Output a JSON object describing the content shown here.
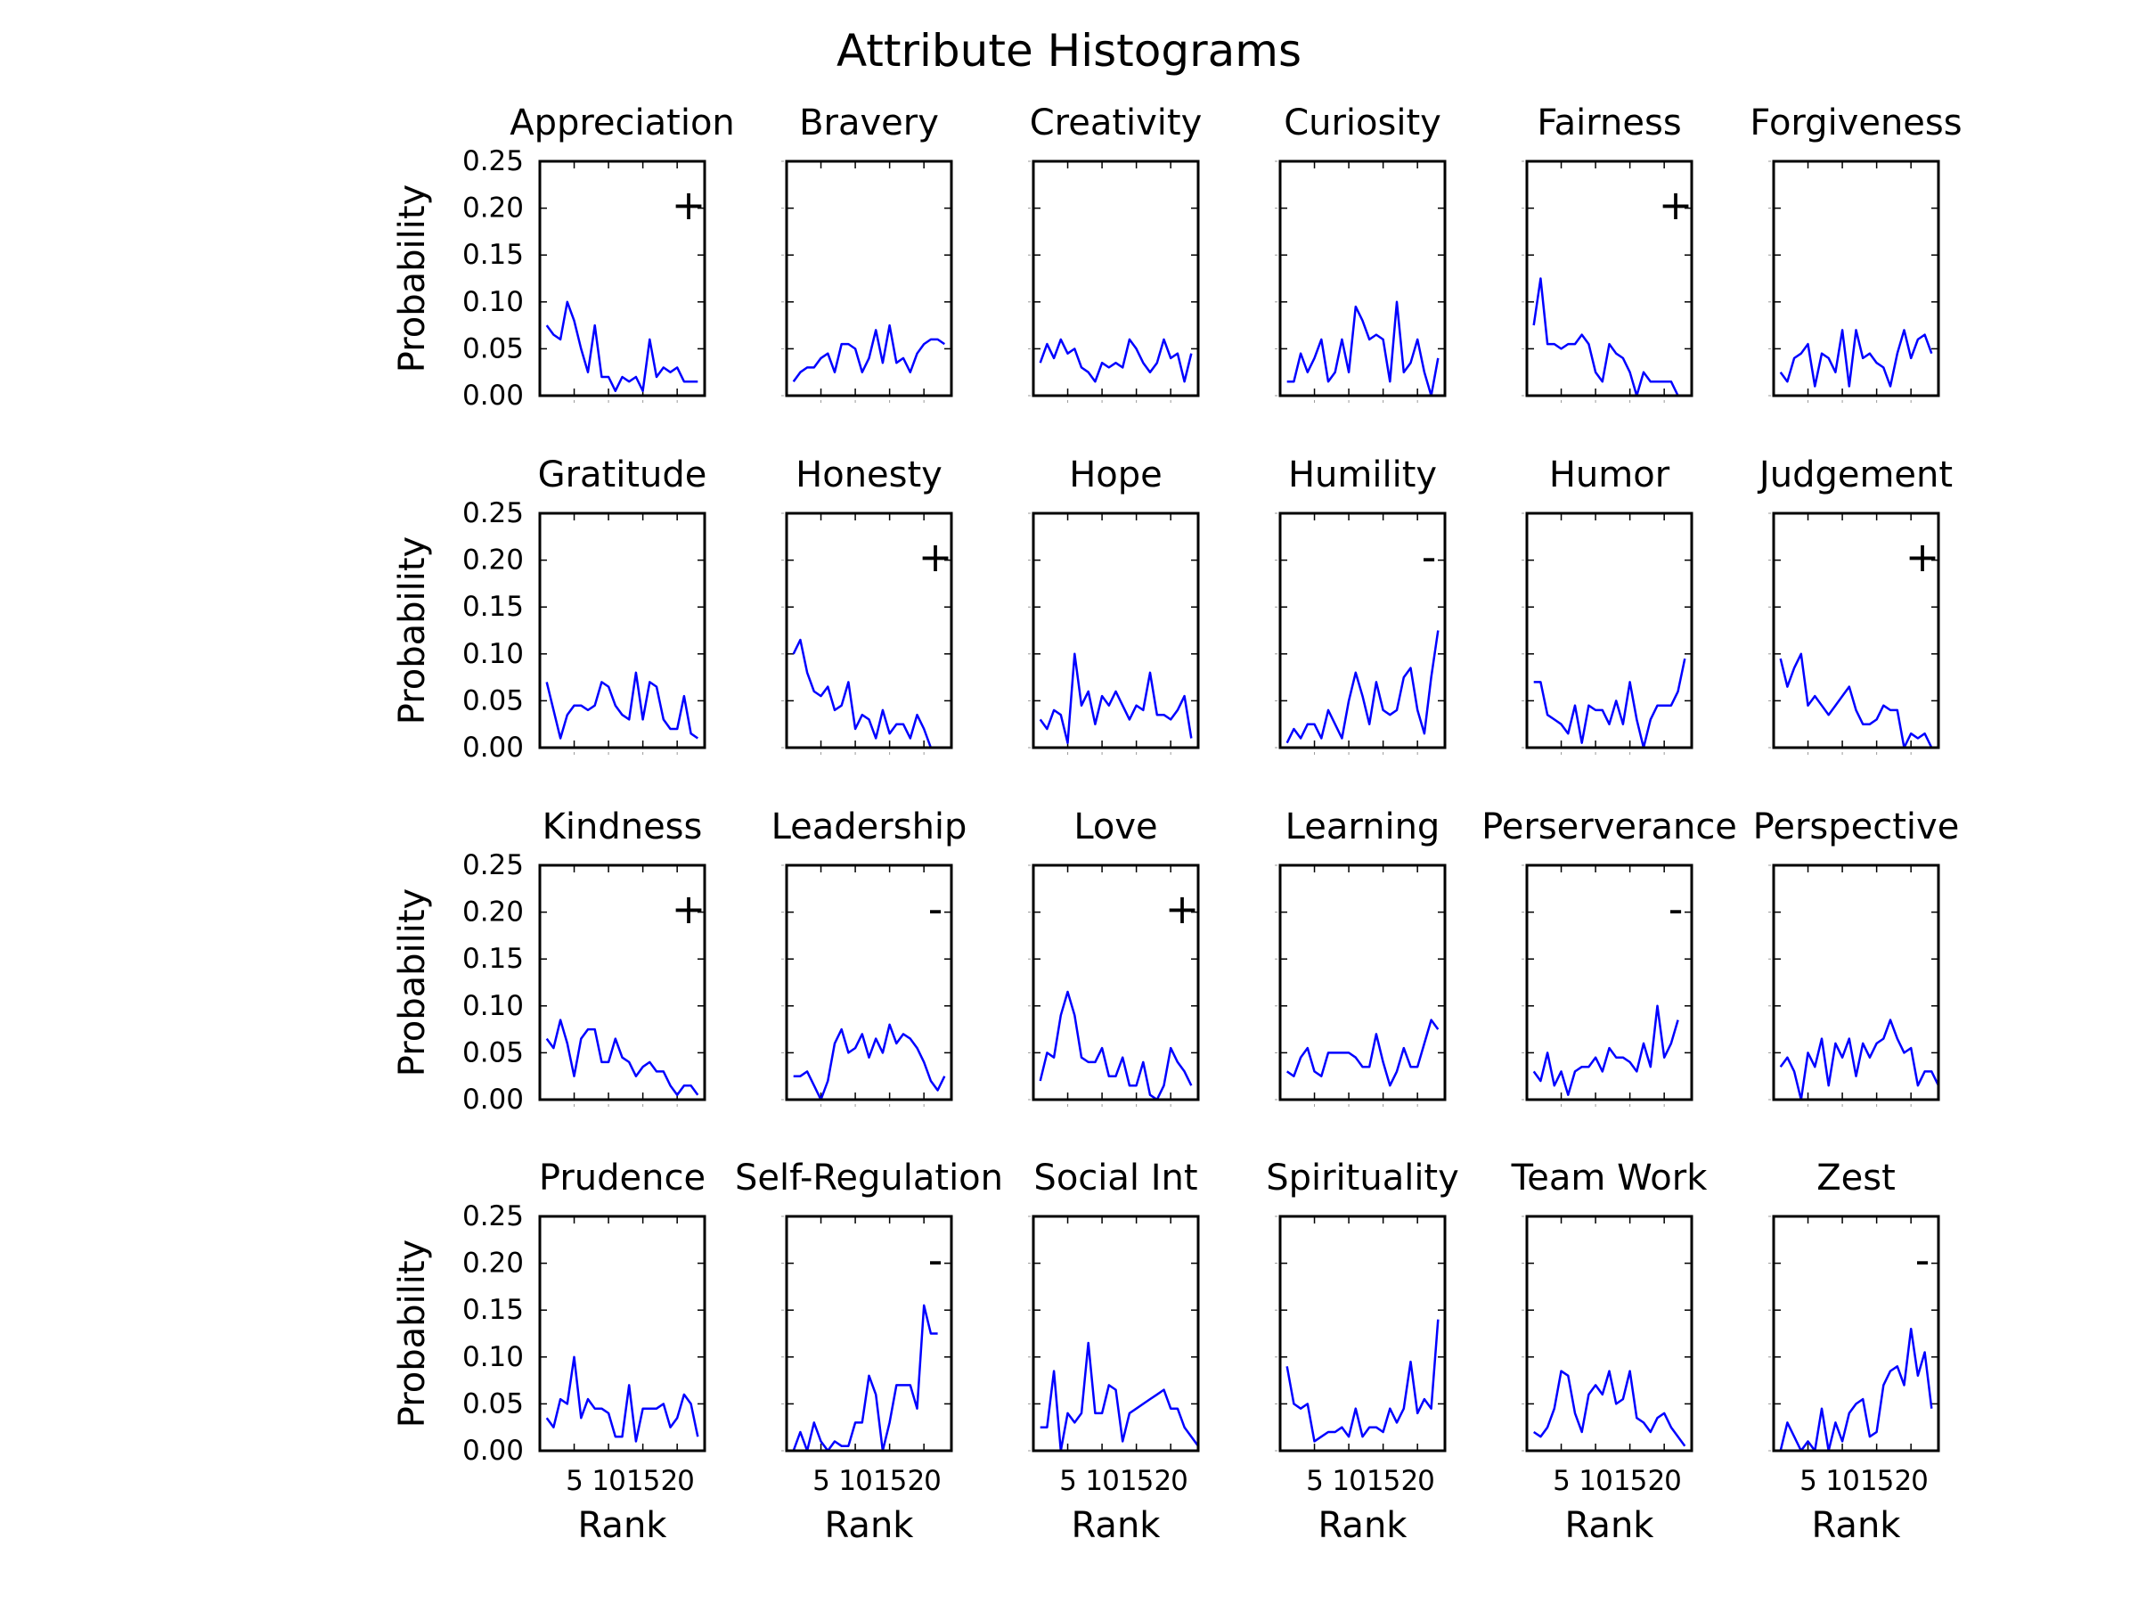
{
  "figure": {
    "title": "Attribute Histograms"
  },
  "chart_data": {
    "type": "line",
    "title": "Attribute Histograms",
    "xlabel": "Rank",
    "ylabel": "Probability",
    "xlim": [
      0,
      24
    ],
    "ylim": [
      0,
      0.25
    ],
    "yticks": [
      "0.00",
      "0.05",
      "0.10",
      "0.15",
      "0.20",
      "0.25"
    ],
    "xticks": [
      "5",
      "10",
      "15",
      "20"
    ],
    "line_color": "#0000ff",
    "grid": false,
    "panels": [
      {
        "name": "Appreciation",
        "marker": "+",
        "values": [
          0.075,
          0.065,
          0.06,
          0.1,
          0.08,
          0.05,
          0.025,
          0.075,
          0.02,
          0.02,
          0.005,
          0.02,
          0.015,
          0.02,
          0.005,
          0.06,
          0.02,
          0.03,
          0.025,
          0.03,
          0.015,
          0.015,
          0.015
        ]
      },
      {
        "name": "Bravery",
        "marker": "",
        "values": [
          0.015,
          0.025,
          0.03,
          0.03,
          0.04,
          0.045,
          0.025,
          0.055,
          0.055,
          0.05,
          0.025,
          0.04,
          0.07,
          0.035,
          0.075,
          0.035,
          0.04,
          0.025,
          0.045,
          0.055,
          0.06,
          0.06,
          0.055
        ]
      },
      {
        "name": "Creativity",
        "marker": "",
        "values": [
          0.035,
          0.055,
          0.04,
          0.06,
          0.045,
          0.05,
          0.03,
          0.025,
          0.015,
          0.035,
          0.03,
          0.035,
          0.03,
          0.06,
          0.05,
          0.035,
          0.025,
          0.035,
          0.06,
          0.04,
          0.045,
          0.015,
          0.045
        ]
      },
      {
        "name": "Curiosity",
        "marker": "",
        "values": [
          0.015,
          0.015,
          0.045,
          0.025,
          0.04,
          0.06,
          0.015,
          0.025,
          0.06,
          0.025,
          0.095,
          0.08,
          0.06,
          0.065,
          0.06,
          0.015,
          0.1,
          0.025,
          0.035,
          0.06,
          0.025,
          0.0,
          0.04
        ]
      },
      {
        "name": "Fairness",
        "marker": "+",
        "values": [
          0.075,
          0.125,
          0.055,
          0.055,
          0.05,
          0.055,
          0.055,
          0.065,
          0.055,
          0.025,
          0.015,
          0.055,
          0.045,
          0.04,
          0.025,
          0.0,
          0.025,
          0.015,
          0.015,
          0.015,
          0.015,
          0.0
        ]
      },
      {
        "name": "Forgiveness",
        "marker": "",
        "values": [
          0.025,
          0.015,
          0.04,
          0.045,
          0.055,
          0.01,
          0.045,
          0.04,
          0.025,
          0.07,
          0.01,
          0.07,
          0.04,
          0.045,
          0.035,
          0.03,
          0.01,
          0.045,
          0.07,
          0.04,
          0.06,
          0.065,
          0.045
        ]
      },
      {
        "name": "Gratitude",
        "marker": "",
        "values": [
          0.07,
          0.04,
          0.01,
          0.035,
          0.045,
          0.045,
          0.04,
          0.045,
          0.07,
          0.065,
          0.045,
          0.035,
          0.03,
          0.08,
          0.03,
          0.07,
          0.065,
          0.03,
          0.02,
          0.02,
          0.055,
          0.015,
          0.01
        ]
      },
      {
        "name": "Honesty",
        "marker": "+",
        "values": [
          0.1,
          0.115,
          0.08,
          0.06,
          0.055,
          0.065,
          0.04,
          0.045,
          0.07,
          0.02,
          0.035,
          0.03,
          0.01,
          0.04,
          0.015,
          0.025,
          0.025,
          0.01,
          0.035,
          0.02,
          0.0,
          0.0
        ]
      },
      {
        "name": "Hope",
        "marker": "",
        "values": [
          0.03,
          0.02,
          0.04,
          0.035,
          0.005,
          0.1,
          0.045,
          0.06,
          0.025,
          0.055,
          0.045,
          0.06,
          0.045,
          0.03,
          0.045,
          0.04,
          0.08,
          0.035,
          0.035,
          0.03,
          0.04,
          0.055,
          0.01
        ]
      },
      {
        "name": "Humility",
        "marker": "-",
        "values": [
          0.005,
          0.02,
          0.01,
          0.025,
          0.025,
          0.01,
          0.04,
          0.025,
          0.01,
          0.05,
          0.08,
          0.055,
          0.025,
          0.07,
          0.04,
          0.035,
          0.04,
          0.075,
          0.085,
          0.04,
          0.015,
          0.075,
          0.125
        ]
      },
      {
        "name": "Humor",
        "marker": "",
        "values": [
          0.07,
          0.07,
          0.035,
          0.03,
          0.025,
          0.015,
          0.045,
          0.005,
          0.045,
          0.04,
          0.04,
          0.025,
          0.05,
          0.025,
          0.07,
          0.03,
          0.0,
          0.03,
          0.045,
          0.045,
          0.045,
          0.06,
          0.095
        ]
      },
      {
        "name": "Judgement",
        "marker": "+",
        "values": [
          0.095,
          0.065,
          0.085,
          0.1,
          0.045,
          0.055,
          0.045,
          0.035,
          0.045,
          0.055,
          0.065,
          0.04,
          0.025,
          0.025,
          0.03,
          0.045,
          0.04,
          0.04,
          0.0,
          0.015,
          0.01,
          0.015,
          0.0
        ]
      },
      {
        "name": "Kindness",
        "marker": "+",
        "values": [
          0.065,
          0.055,
          0.085,
          0.06,
          0.025,
          0.065,
          0.075,
          0.075,
          0.04,
          0.04,
          0.065,
          0.045,
          0.04,
          0.025,
          0.035,
          0.04,
          0.03,
          0.03,
          0.015,
          0.005,
          0.015,
          0.015,
          0.005
        ]
      },
      {
        "name": "Leadership",
        "marker": "-",
        "values": [
          0.025,
          0.025,
          0.03,
          0.015,
          0.0,
          0.02,
          0.06,
          0.075,
          0.05,
          0.055,
          0.07,
          0.045,
          0.065,
          0.05,
          0.08,
          0.06,
          0.07,
          0.065,
          0.055,
          0.04,
          0.02,
          0.01,
          0.025
        ]
      },
      {
        "name": "Love",
        "marker": "+",
        "values": [
          0.02,
          0.05,
          0.045,
          0.09,
          0.115,
          0.09,
          0.045,
          0.04,
          0.04,
          0.055,
          0.025,
          0.025,
          0.045,
          0.015,
          0.015,
          0.04,
          0.005,
          0.0,
          0.015,
          0.055,
          0.04,
          0.03,
          0.015
        ]
      },
      {
        "name": "Learning",
        "marker": "",
        "values": [
          0.03,
          0.025,
          0.045,
          0.055,
          0.03,
          0.025,
          0.05,
          0.05,
          0.05,
          0.05,
          0.045,
          0.035,
          0.035,
          0.07,
          0.04,
          0.015,
          0.03,
          0.055,
          0.035,
          0.035,
          0.06,
          0.085,
          0.075
        ]
      },
      {
        "name": "Perserverance",
        "marker": "-",
        "values": [
          0.03,
          0.02,
          0.05,
          0.015,
          0.03,
          0.005,
          0.03,
          0.035,
          0.035,
          0.045,
          0.03,
          0.055,
          0.045,
          0.045,
          0.04,
          0.03,
          0.06,
          0.035,
          0.1,
          0.045,
          0.06,
          0.085
        ]
      },
      {
        "name": "Perspective",
        "marker": "",
        "values": [
          0.035,
          0.045,
          0.03,
          0.0,
          0.05,
          0.035,
          0.065,
          0.015,
          0.06,
          0.045,
          0.065,
          0.025,
          0.06,
          0.045,
          0.06,
          0.065,
          0.085,
          0.065,
          0.05,
          0.055,
          0.015,
          0.03,
          0.03,
          0.015
        ]
      },
      {
        "name": "Prudence",
        "marker": "",
        "values": [
          0.035,
          0.025,
          0.055,
          0.05,
          0.1,
          0.035,
          0.055,
          0.045,
          0.045,
          0.04,
          0.015,
          0.015,
          0.07,
          0.01,
          0.045,
          0.045,
          0.045,
          0.05,
          0.025,
          0.035,
          0.06,
          0.05,
          0.015
        ]
      },
      {
        "name": "Self-Regulation",
        "marker": "-",
        "values": [
          0.0,
          0.02,
          0.0,
          0.03,
          0.01,
          0.0,
          0.01,
          0.005,
          0.005,
          0.03,
          0.03,
          0.08,
          0.06,
          0.0,
          0.03,
          0.07,
          0.07,
          0.07,
          0.045,
          0.155,
          0.125,
          0.125
        ]
      },
      {
        "name": "Social Int",
        "marker": "",
        "values": [
          0.025,
          0.025,
          0.085,
          0.0,
          0.04,
          0.03,
          0.04,
          0.115,
          0.04,
          0.04,
          0.07,
          0.065,
          0.01,
          0.04,
          0.045,
          0.05,
          0.055,
          0.06,
          0.065,
          0.045,
          0.045,
          0.025,
          0.015,
          0.005
        ]
      },
      {
        "name": "Spirituality",
        "marker": "",
        "values": [
          0.09,
          0.05,
          0.045,
          0.05,
          0.01,
          0.015,
          0.02,
          0.02,
          0.025,
          0.015,
          0.045,
          0.015,
          0.025,
          0.025,
          0.02,
          0.045,
          0.03,
          0.045,
          0.095,
          0.04,
          0.055,
          0.045,
          0.14
        ]
      },
      {
        "name": "Team Work",
        "marker": "",
        "values": [
          0.02,
          0.015,
          0.025,
          0.045,
          0.085,
          0.08,
          0.04,
          0.02,
          0.06,
          0.07,
          0.06,
          0.085,
          0.05,
          0.055,
          0.085,
          0.035,
          0.03,
          0.02,
          0.035,
          0.04,
          0.025,
          0.015,
          0.005
        ]
      },
      {
        "name": "Zest",
        "marker": "-",
        "values": [
          0.0,
          0.03,
          0.015,
          0.0,
          0.01,
          0.0,
          0.045,
          0.0,
          0.03,
          0.01,
          0.04,
          0.05,
          0.055,
          0.015,
          0.02,
          0.07,
          0.085,
          0.09,
          0.07,
          0.13,
          0.08,
          0.105,
          0.045
        ]
      }
    ]
  }
}
